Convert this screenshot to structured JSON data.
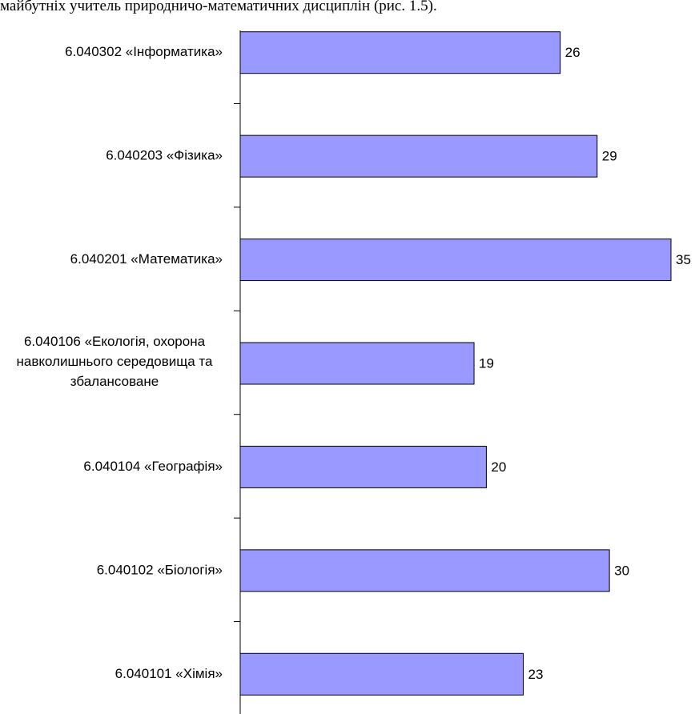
{
  "text_above": "майбутніх учитель природничо-математичних дисциплін (рис. 1.5).",
  "chart_data": {
    "type": "bar",
    "orientation": "horizontal",
    "categories": [
      "6.040302 «Інформатика»",
      "6.040203 «Фізика»",
      "6.040201 «Математика»",
      "6.040106 «Екологія, охорона навколишнього середовища та збалансоване",
      "6.040104 «Географія»",
      "6.040102 «Біологія»",
      "6.040101 «Хімія»"
    ],
    "values": [
      26,
      29,
      35,
      19,
      20,
      30,
      23
    ],
    "color": "#9999ff"
  }
}
